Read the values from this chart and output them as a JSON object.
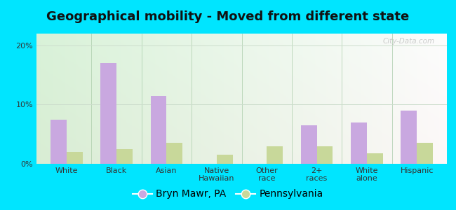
{
  "title": "Geographical mobility - Moved from different state",
  "categories": [
    "White",
    "Black",
    "Asian",
    "Native\nHawaiian",
    "Other\nrace",
    "2+\nraces",
    "White\nalone",
    "Hispanic"
  ],
  "bryn_mawr": [
    7.5,
    17.0,
    11.5,
    0.0,
    0.0,
    6.5,
    7.0,
    9.0
  ],
  "pennsylvania": [
    2.0,
    2.5,
    3.5,
    1.5,
    3.0,
    3.0,
    1.8,
    3.5
  ],
  "bar_color_bryn": "#c9a8e0",
  "bar_color_pa": "#c8d89a",
  "ylim": [
    0,
    22
  ],
  "yticks": [
    0,
    10,
    20
  ],
  "ytick_labels": [
    "0%",
    "10%",
    "20%"
  ],
  "legend_labels": [
    "Bryn Mawr, PA",
    "Pennsylvania"
  ],
  "bg_outer": "#00e5ff",
  "watermark": "City-Data.com",
  "title_fontsize": 13,
  "tick_fontsize": 8,
  "legend_fontsize": 10
}
